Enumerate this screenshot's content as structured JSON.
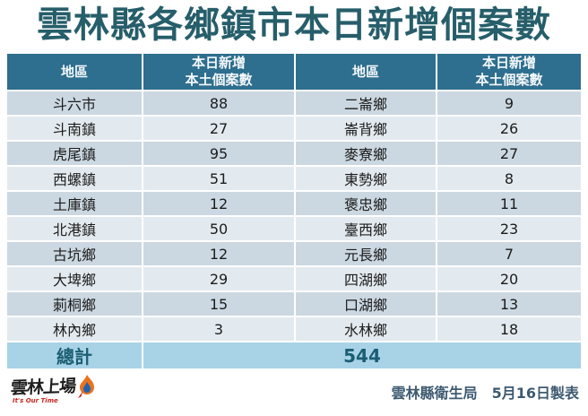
{
  "title": "雲林縣各鄉鎮市本日新增個案數",
  "table": {
    "header": {
      "area_label": "地區",
      "count_line1": "本日新增",
      "count_line2": "本土個案數"
    },
    "rows": [
      {
        "left_area": "斗六市",
        "left_count": "88",
        "right_area": "二崙鄉",
        "right_count": "9"
      },
      {
        "left_area": "斗南鎮",
        "left_count": "27",
        "right_area": "崙背鄉",
        "right_count": "26"
      },
      {
        "left_area": "虎尾鎮",
        "left_count": "95",
        "right_area": "麥寮鄉",
        "right_count": "27"
      },
      {
        "left_area": "西螺鎮",
        "left_count": "51",
        "right_area": "東勢鄉",
        "right_count": "8"
      },
      {
        "left_area": "土庫鎮",
        "left_count": "12",
        "right_area": "褒忠鄉",
        "right_count": "11"
      },
      {
        "left_area": "北港鎮",
        "left_count": "50",
        "right_area": "臺西鄉",
        "right_count": "23"
      },
      {
        "left_area": "古坑鄉",
        "left_count": "12",
        "right_area": "元長鄉",
        "right_count": "7"
      },
      {
        "left_area": "大埤鄉",
        "left_count": "29",
        "right_area": "四湖鄉",
        "right_count": "20"
      },
      {
        "left_area": "莿桐鄉",
        "left_count": "15",
        "right_area": "口湖鄉",
        "right_count": "13"
      },
      {
        "left_area": "林內鄉",
        "left_count": "3",
        "right_area": "水林鄉",
        "right_count": "18"
      }
    ],
    "total": {
      "label": "總計",
      "value": "544"
    }
  },
  "footer": {
    "logo_text": "雲林上場",
    "logo_subtext": "It's Our Time",
    "credit": "雲林縣衛生局　5月16日製表"
  },
  "colors": {
    "header_bg": "#2e6e8e",
    "row_odd": "#cbd8e1",
    "row_even": "#e3eaef",
    "total_bg": "#a8d3e7",
    "title": "#265e6a",
    "credit": "#3d5a71",
    "logo_flame_orange": "#e8731f",
    "logo_flame_blue": "#1f63b0",
    "logo_red": "#c5261f"
  }
}
